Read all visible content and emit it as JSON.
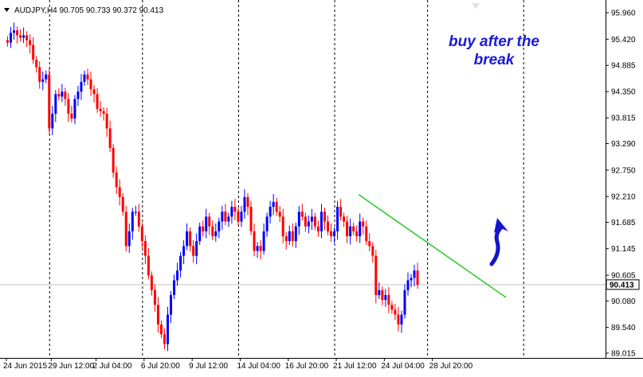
{
  "chart_data": {
    "type": "candlestick",
    "symbol_info": {
      "symbol": "AUDJPY,H4",
      "open": "90.705",
      "high": "90.733",
      "low": "90.372",
      "close": "90.413"
    },
    "annotation": {
      "line1": "buy after the",
      "line2": "break"
    },
    "current_price": 90.413,
    "current_price_label": "90.413",
    "y_ticks": [
      {
        "value": 95.96,
        "label": "95.960"
      },
      {
        "value": 95.42,
        "label": "95.420"
      },
      {
        "value": 94.885,
        "label": "94.885"
      },
      {
        "value": 94.35,
        "label": "94.350"
      },
      {
        "value": 93.815,
        "label": "93.815"
      },
      {
        "value": 93.29,
        "label": "93.290"
      },
      {
        "value": 92.75,
        "label": "92.750"
      },
      {
        "value": 92.21,
        "label": "92.210"
      },
      {
        "value": 91.685,
        "label": "91.685"
      },
      {
        "value": 91.145,
        "label": "91.145"
      },
      {
        "value": 90.605,
        "label": "90.605"
      },
      {
        "value": 90.08,
        "label": "90.080"
      },
      {
        "value": 89.54,
        "label": "89.540"
      },
      {
        "value": 89.015,
        "label": "89.015"
      }
    ],
    "x_ticks": [
      {
        "index": 0,
        "label": "24 Jun 2015"
      },
      {
        "index": 14,
        "label": "29 Jun 12:00"
      },
      {
        "index": 28,
        "label": "2 Jul 04:00"
      },
      {
        "index": 43,
        "label": "6 Jul 20:00"
      },
      {
        "index": 58,
        "label": "9 Jul 12:00"
      },
      {
        "index": 73,
        "label": "14 Jul 04:00"
      },
      {
        "index": 88,
        "label": "16 Jul 20:00"
      },
      {
        "index": 103,
        "label": "21 Jul 12:00"
      },
      {
        "index": 118,
        "label": "24 Jul 04:00"
      },
      {
        "index": 133,
        "label": "28 Jul 20:00"
      }
    ],
    "period_separators": [
      13,
      42,
      72,
      102,
      131,
      161
    ],
    "trendline": {
      "start": {
        "index": 110,
        "price": 92.25
      },
      "end": {
        "index": 156,
        "price": 90.15
      }
    },
    "closes": [
      95.35,
      95.55,
      95.6,
      95.5,
      95.45,
      95.5,
      95.4,
      95.3,
      95.0,
      94.85,
      94.55,
      94.6,
      94.7,
      93.6,
      93.9,
      94.3,
      94.25,
      94.35,
      94.2,
      93.9,
      93.8,
      94.2,
      94.35,
      94.55,
      94.7,
      94.6,
      94.4,
      94.3,
      94.0,
      93.95,
      93.9,
      93.6,
      93.2,
      92.7,
      92.4,
      92.2,
      91.9,
      91.2,
      91.5,
      91.9,
      91.9,
      91.6,
      91.3,
      91.0,
      90.6,
      90.3,
      90.0,
      89.6,
      89.4,
      89.2,
      89.8,
      90.2,
      90.5,
      90.7,
      91.0,
      91.2,
      91.5,
      91.2,
      91.0,
      91.3,
      91.6,
      91.5,
      91.8,
      91.6,
      91.4,
      91.5,
      91.7,
      91.9,
      91.7,
      91.8,
      92.0,
      91.9,
      91.7,
      91.9,
      92.2,
      92.0,
      91.5,
      91.1,
      91.2,
      91.1,
      91.5,
      91.8,
      92.0,
      92.1,
      91.9,
      91.8,
      91.4,
      91.3,
      91.5,
      91.3,
      91.6,
      91.9,
      91.8,
      91.6,
      91.7,
      91.8,
      91.6,
      91.5,
      91.9,
      91.7,
      91.5,
      91.4,
      91.5,
      92.0,
      91.8,
      91.7,
      91.4,
      91.6,
      91.5,
      91.4,
      91.7,
      91.6,
      91.3,
      91.2,
      91.0,
      90.2,
      90.3,
      90.1,
      90.2,
      90.0,
      89.9,
      89.8,
      89.6,
      89.8,
      90.3,
      90.5,
      90.55,
      90.7,
      90.41
    ]
  }
}
